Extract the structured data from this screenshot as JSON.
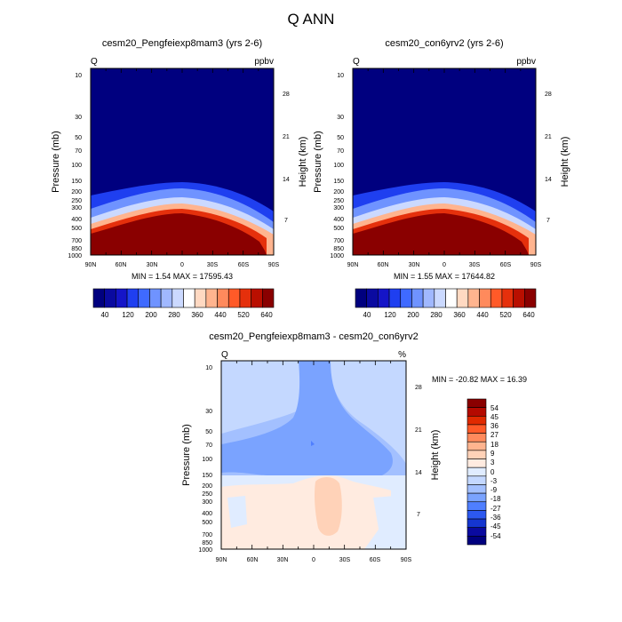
{
  "figure": {
    "title": "Q ANN"
  },
  "colors": {
    "top_scale": [
      "#00007f",
      "#0a0aa0",
      "#1515c8",
      "#1f3ff0",
      "#3f6aff",
      "#6f93ff",
      "#a0b8ff",
      "#cbd9ff",
      "#ffffff",
      "#ffd9c2",
      "#ffb48f",
      "#ff8a5c",
      "#ff5a28",
      "#e5300c",
      "#b90f00",
      "#8a0000"
    ],
    "diff_scale": [
      "#8a0000",
      "#b40a00",
      "#e02a00",
      "#ff5a28",
      "#ff8a5c",
      "#ffb48f",
      "#ffd2b8",
      "#ffebe0",
      "#e0ecff",
      "#c4d8ff",
      "#a3c0ff",
      "#7aa3ff",
      "#4f7fff",
      "#2c58f0",
      "#1536d0",
      "#0a0aa0",
      "#00007f"
    ]
  },
  "chart_data": [
    {
      "type": "heatmap",
      "title": "cesm20_Pengfeiexp8mam3 (yrs 2-6)",
      "variable": "Q",
      "units": "ppbv",
      "ylabel": "Pressure (mb)",
      "ylabel_right": "Height (km)",
      "x_ticks": [
        "90N",
        "60N",
        "30N",
        "0",
        "30S",
        "60S",
        "90S"
      ],
      "y_ticks": [
        "10",
        "30",
        "50",
        "70",
        "100",
        "150",
        "200",
        "250",
        "300",
        "400",
        "500",
        "700",
        "850",
        "1000"
      ],
      "y_ticks_right": [
        "28",
        "21",
        "14",
        "7"
      ],
      "ylim": [
        1000,
        10
      ],
      "min_max_label": "MIN =   1.54  MAX = 17595.43",
      "colorbar_labels": [
        "40",
        "120",
        "200",
        "280",
        "360",
        "440",
        "520",
        "640"
      ]
    },
    {
      "type": "heatmap",
      "title": "cesm20_con6yrv2 (yrs 2-6)",
      "variable": "Q",
      "units": "ppbv",
      "ylabel": "Pressure (mb)",
      "ylabel_right": "Height (km)",
      "x_ticks": [
        "90N",
        "60N",
        "30N",
        "0",
        "30S",
        "60S",
        "90S"
      ],
      "y_ticks": [
        "10",
        "30",
        "50",
        "70",
        "100",
        "150",
        "200",
        "250",
        "300",
        "400",
        "500",
        "700",
        "850",
        "1000"
      ],
      "y_ticks_right": [
        "28",
        "21",
        "14",
        "7"
      ],
      "ylim": [
        1000,
        10
      ],
      "min_max_label": "MIN =   1.55  MAX = 17644.82",
      "colorbar_labels": [
        "40",
        "120",
        "200",
        "280",
        "360",
        "440",
        "520",
        "640"
      ]
    },
    {
      "type": "heatmap",
      "title": "cesm20_Pengfeiexp8mam3 - cesm20_con6yrv2",
      "variable": "Q",
      "units": "%",
      "ylabel": "Pressure (mb)",
      "ylabel_right": "Height (km)",
      "x_ticks": [
        "90N",
        "60N",
        "30N",
        "0",
        "30S",
        "60S",
        "90S"
      ],
      "y_ticks": [
        "10",
        "30",
        "50",
        "70",
        "100",
        "150",
        "200",
        "250",
        "300",
        "400",
        "500",
        "700",
        "850",
        "1000"
      ],
      "y_ticks_right": [
        "28",
        "21",
        "14",
        "7"
      ],
      "ylim": [
        1000,
        10
      ],
      "min_max_label": "MIN = -20.82  MAX =  16.39",
      "colorbar_labels": [
        "54",
        "45",
        "36",
        "27",
        "18",
        "9",
        "3",
        "0",
        "-3",
        "-9",
        "-18",
        "-27",
        "-36",
        "-45",
        "-54"
      ]
    }
  ]
}
